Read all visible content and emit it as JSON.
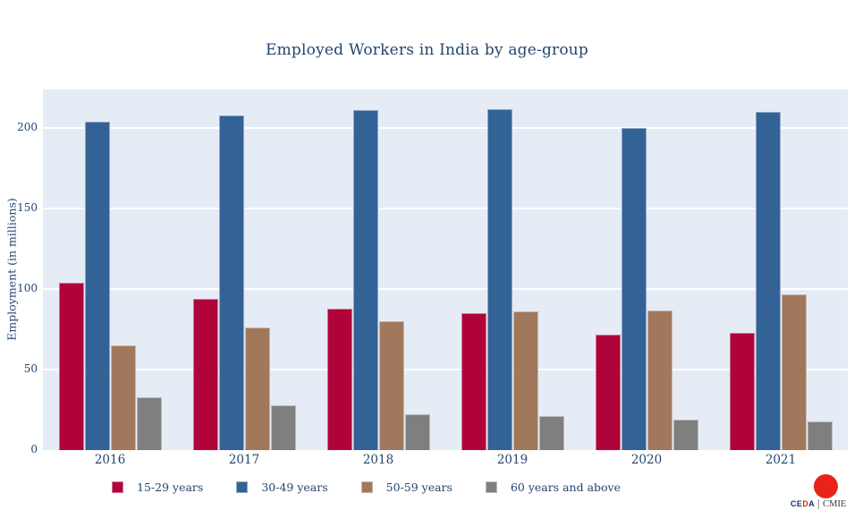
{
  "title": "Employed Workers in India by age-group",
  "branding": {
    "ceda_ce": "CE",
    "ceda_d": "D",
    "ceda_a": "A",
    "cmie": "CMIE"
  },
  "chart_data": {
    "type": "bar",
    "title": "Employed Workers in India by age-group",
    "categories": [
      "2016",
      "2017",
      "2018",
      "2019",
      "2020",
      "2021"
    ],
    "series": [
      {
        "name": "15-29 years",
        "color": "#b0033a",
        "values": [
          104,
          94,
          88,
          85,
          72,
          73
        ]
      },
      {
        "name": "30-49 years",
        "color": "#336396",
        "values": [
          204,
          208,
          211,
          212,
          200,
          210
        ]
      },
      {
        "name": "50-59 years",
        "color": "#a1785c",
        "values": [
          65,
          76,
          80,
          86,
          87,
          97
        ]
      },
      {
        "name": "60 years and above",
        "color": "#7f7f7f",
        "values": [
          33,
          28,
          22,
          21,
          19,
          18
        ]
      }
    ],
    "xlabel": "",
    "ylabel": "Employment (in millions)",
    "yticks": [
      0,
      50,
      100,
      150,
      200
    ],
    "ylim": [
      0,
      224
    ],
    "grid": true,
    "legend_position": "bottom",
    "colors": {
      "plot_bg": "#e5ecf6",
      "gridline": "#ffffff",
      "text": "#24466e",
      "logo_red": "#e8231a"
    }
  }
}
